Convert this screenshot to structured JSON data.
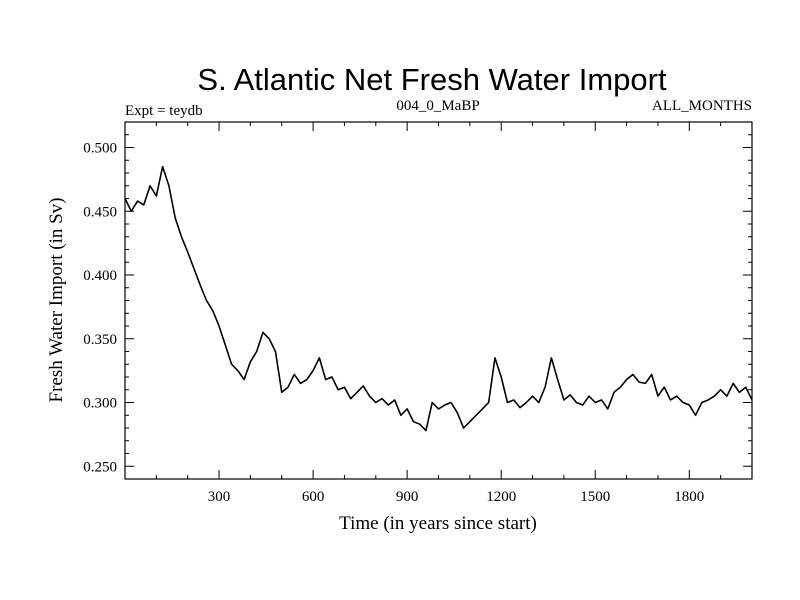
{
  "chart_data": {
    "type": "line",
    "title": "S. Atlantic Net Fresh Water Import",
    "subtitle_left": "Expt = teydb",
    "subtitle_center": "004_0_MaBP",
    "subtitle_right": "ALL_MONTHS",
    "xlabel": "Time (in years since start)",
    "ylabel": "Fresh Water Import (in Sv)",
    "xlim": [
      0,
      2000
    ],
    "ylim": [
      0.24,
      0.52
    ],
    "xticks": [
      300,
      600,
      900,
      1200,
      1500,
      1800
    ],
    "yticks": [
      0.25,
      0.3,
      0.35,
      0.4,
      0.45,
      0.5
    ],
    "ytick_labels": [
      "0.250",
      "0.300",
      "0.350",
      "0.400",
      "0.450",
      "0.500"
    ],
    "series": [
      {
        "name": "Fresh Water Import",
        "color": "#000000",
        "x": [
          0,
          20,
          40,
          60,
          80,
          100,
          120,
          140,
          160,
          180,
          200,
          220,
          240,
          260,
          280,
          300,
          320,
          340,
          360,
          380,
          400,
          420,
          440,
          460,
          480,
          500,
          520,
          540,
          560,
          580,
          600,
          620,
          640,
          660,
          680,
          700,
          720,
          740,
          760,
          780,
          800,
          820,
          840,
          860,
          880,
          900,
          920,
          940,
          960,
          980,
          1000,
          1020,
          1040,
          1060,
          1080,
          1100,
          1120,
          1140,
          1160,
          1180,
          1200,
          1220,
          1240,
          1260,
          1280,
          1300,
          1320,
          1340,
          1360,
          1380,
          1400,
          1420,
          1440,
          1460,
          1480,
          1500,
          1520,
          1540,
          1560,
          1580,
          1600,
          1620,
          1640,
          1660,
          1680,
          1700,
          1720,
          1740,
          1760,
          1780,
          1800,
          1820,
          1840,
          1860,
          1880,
          1900,
          1920,
          1940,
          1960,
          1980,
          2000
        ],
        "values": [
          0.46,
          0.45,
          0.458,
          0.455,
          0.47,
          0.462,
          0.485,
          0.47,
          0.445,
          0.43,
          0.418,
          0.405,
          0.392,
          0.38,
          0.372,
          0.36,
          0.345,
          0.33,
          0.325,
          0.318,
          0.332,
          0.34,
          0.355,
          0.35,
          0.34,
          0.308,
          0.312,
          0.322,
          0.315,
          0.318,
          0.325,
          0.335,
          0.318,
          0.32,
          0.31,
          0.312,
          0.303,
          0.308,
          0.313,
          0.305,
          0.3,
          0.303,
          0.298,
          0.302,
          0.29,
          0.295,
          0.285,
          0.283,
          0.278,
          0.3,
          0.295,
          0.298,
          0.3,
          0.292,
          0.28,
          0.285,
          0.29,
          0.295,
          0.3,
          0.335,
          0.32,
          0.3,
          0.302,
          0.296,
          0.3,
          0.305,
          0.3,
          0.312,
          0.335,
          0.318,
          0.302,
          0.306,
          0.3,
          0.298,
          0.305,
          0.3,
          0.302,
          0.295,
          0.308,
          0.312,
          0.318,
          0.322,
          0.316,
          0.315,
          0.322,
          0.305,
          0.312,
          0.302,
          0.305,
          0.3,
          0.298,
          0.29,
          0.3,
          0.302,
          0.305,
          0.31,
          0.305,
          0.315,
          0.308,
          0.312,
          0.302
        ]
      }
    ]
  }
}
